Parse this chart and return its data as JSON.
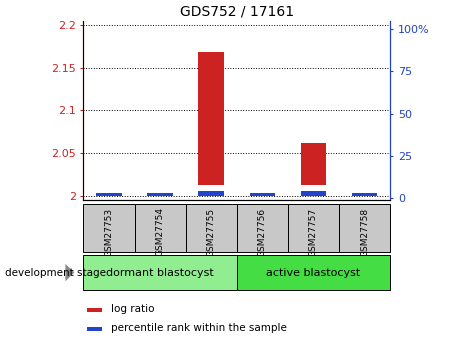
{
  "title": "GDS752 / 17161",
  "samples": [
    "GSM27753",
    "GSM27754",
    "GSM27755",
    "GSM27756",
    "GSM27757",
    "GSM27758"
  ],
  "log_ratio_top": [
    2.0,
    2.0,
    2.168,
    2.0,
    2.062,
    2.0
  ],
  "log_ratio_bottom": [
    2.0,
    2.0,
    2.013,
    2.0,
    2.013,
    2.0
  ],
  "pct_rank_top": [
    2.003,
    2.003,
    2.006,
    2.003,
    2.006,
    2.003
  ],
  "ylim_left": [
    1.995,
    2.205
  ],
  "yticks_left": [
    2.0,
    2.05,
    2.1,
    2.15,
    2.2
  ],
  "ytick_labels_left": [
    "2",
    "2.05",
    "2.1",
    "2.15",
    "2.2"
  ],
  "yticks_right": [
    0,
    25,
    50,
    75,
    100
  ],
  "ytick_labels_right": [
    "0",
    "25",
    "50",
    "75",
    "100%"
  ],
  "ylim_right": [
    -1.05,
    105
  ],
  "pct_rank_vals": [
    4,
    4,
    8,
    4,
    8,
    4
  ],
  "groups": [
    {
      "label": "dormant blastocyst",
      "color": "#90ee90"
    },
    {
      "label": "active blastocyst",
      "color": "#44dd44"
    }
  ],
  "bar_color_red": "#cc2222",
  "bar_color_blue": "#2244cc",
  "sample_bg_color": "#c8c8c8",
  "title_fontsize": 10,
  "axis_color_left": "#cc2222",
  "axis_color_right": "#2244bb",
  "group_label_fontsize": 8,
  "dev_stage_label": "development stage",
  "legend_items": [
    "log ratio",
    "percentile rank within the sample"
  ]
}
